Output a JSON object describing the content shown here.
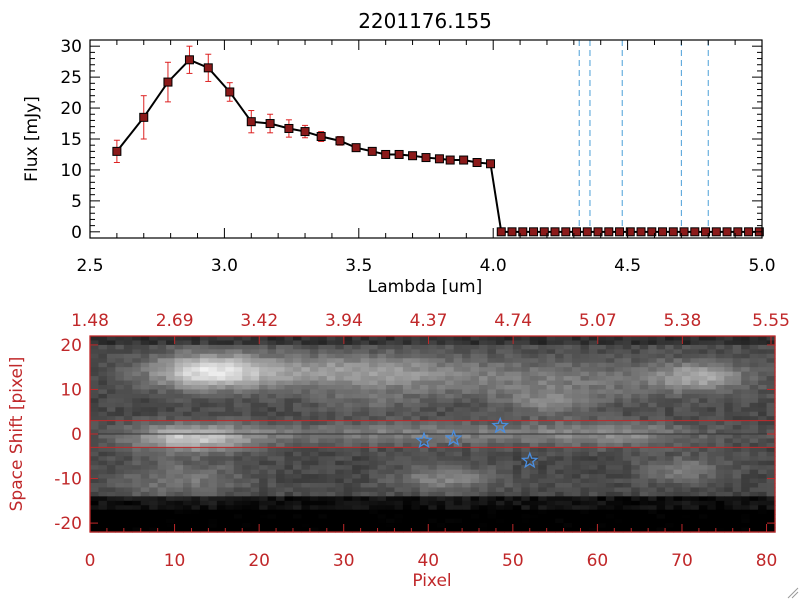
{
  "chart_data": [
    {
      "type": "line",
      "title": "2201176.155",
      "xlabel": "Lambda [um]",
      "ylabel": "Flux [mJy]",
      "xlim": [
        2.5,
        5.0
      ],
      "ylim": [
        -1,
        31
      ],
      "xticks": [
        "2.5",
        "3.0",
        "3.5",
        "4.0",
        "4.5",
        "5.0"
      ],
      "yticks": [
        "0",
        "5",
        "10",
        "15",
        "20",
        "25",
        "30"
      ],
      "series": [
        {
          "x": [
            2.6,
            2.7,
            2.79,
            2.87,
            2.94,
            3.02,
            3.1,
            3.17,
            3.24,
            3.3,
            3.36,
            3.43,
            3.49,
            3.55,
            3.6,
            3.65,
            3.7,
            3.75,
            3.8,
            3.84,
            3.89,
            3.94,
            3.99,
            4.03,
            4.07,
            4.11,
            4.15,
            4.19,
            4.23,
            4.27,
            4.31,
            4.35,
            4.39,
            4.43,
            4.47,
            4.51,
            4.55,
            4.59,
            4.63,
            4.67,
            4.71,
            4.75,
            4.79,
            4.83,
            4.87,
            4.91,
            4.95,
            4.99
          ],
          "y": [
            13.0,
            18.5,
            24.2,
            27.8,
            26.5,
            22.6,
            17.8,
            17.5,
            16.7,
            16.2,
            15.4,
            14.7,
            13.6,
            13.0,
            12.5,
            12.5,
            12.3,
            12.0,
            11.8,
            11.6,
            11.6,
            11.2,
            11.0,
            0.0,
            0.0,
            0.0,
            0.0,
            0.0,
            0.0,
            0.0,
            0.0,
            0.0,
            0.0,
            0.0,
            0.0,
            0.0,
            0.0,
            0.0,
            0.0,
            0.0,
            0.0,
            0.0,
            0.0,
            0.0,
            0.0,
            0.0,
            0.0,
            0.0
          ],
          "yerr": [
            1.8,
            3.5,
            3.2,
            2.2,
            2.2,
            1.5,
            1.8,
            1.5,
            1.4,
            1.0,
            0.8,
            0.7,
            0.6,
            0.5,
            0.5,
            0.5,
            0.5,
            0.5,
            0.5,
            0.5,
            0.5,
            0.5,
            0.5,
            0,
            0,
            0,
            0,
            0,
            0,
            0,
            0,
            0,
            0,
            0,
            0,
            0,
            0,
            0,
            0,
            0,
            0,
            0,
            0,
            0,
            0,
            0,
            0,
            0
          ]
        }
      ],
      "vlines": [
        4.32,
        4.36,
        4.48,
        4.7,
        4.8
      ],
      "colors": {
        "line": "#000000",
        "marker": "#8b1a1a",
        "errorbar": "#dd2222",
        "vline": "#4a9fd8"
      }
    },
    {
      "type": "heatmap",
      "xlabel": "Pixel",
      "ylabel": "Space Shift [pixel]",
      "xlim": [
        0,
        81
      ],
      "ylim": [
        -22,
        22
      ],
      "xticks": [
        "0",
        "10",
        "20",
        "30",
        "40",
        "50",
        "60",
        "70",
        "80"
      ],
      "yticks": [
        "-20",
        "-10",
        "0",
        "10",
        "20"
      ],
      "top_ticks": [
        "1.48",
        "2.69",
        "3.42",
        "3.94",
        "4.37",
        "4.74",
        "5.07",
        "5.38",
        "5.55"
      ],
      "hlines": [
        3,
        -3
      ],
      "center_line": 0,
      "stars": [
        {
          "x": 39.5,
          "y": -1.5
        },
        {
          "x": 43.0,
          "y": -1.0
        },
        {
          "x": 48.5,
          "y": 1.8
        },
        {
          "x": 52.0,
          "y": -6.0
        }
      ],
      "colors": {
        "axis": "#c0282a",
        "star": "#4a8ee0",
        "band": "#c0282a"
      }
    }
  ]
}
